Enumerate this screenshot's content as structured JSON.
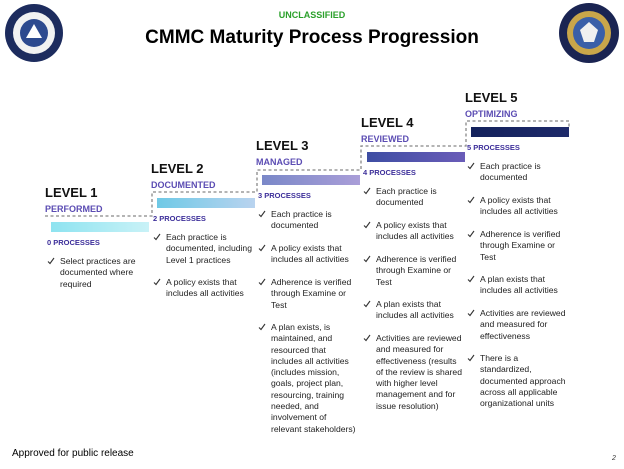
{
  "header": {
    "marking": "UNCLASSIFIED",
    "title": "CMMC Maturity Process Progression"
  },
  "levels": [
    {
      "level": "LEVEL 1",
      "name": "PERFORMED",
      "processes": "0 PROCESSES",
      "items": [
        "Select practices are documented where required"
      ]
    },
    {
      "level": "LEVEL 2",
      "name": "DOCUMENTED",
      "processes": "2 PROCESSES",
      "items": [
        "Each practice is documented, including Level 1 practices",
        "A policy exists that includes all activities"
      ]
    },
    {
      "level": "LEVEL 3",
      "name": "MANAGED",
      "processes": "3 PROCESSES",
      "items": [
        "Each practice is documented",
        "A policy exists that includes all activities",
        "Adherence is verified through Examine or Test",
        "A plan exists, is maintained, and resourced that includes all activities (includes mission, goals, project plan, resourcing, training needed, and involvement of relevant stakeholders)"
      ]
    },
    {
      "level": "LEVEL 4",
      "name": "REVIEWED",
      "processes": "4 PROCESSES",
      "items": [
        "Each practice is documented",
        "A policy exists that includes all activities",
        "Adherence is verified through Examine or Test",
        "A plan exists that includes all activities",
        "Activities are reviewed and measured for effectiveness (results of the review is shared with higher level management and for issue resolution)"
      ]
    },
    {
      "level": "LEVEL 5",
      "name": "OPTIMIZING",
      "processes": "5 PROCESSES",
      "items": [
        "Each practice is documented",
        "A policy exists that includes all activities",
        "Adherence is verified through Examine or Test",
        "A plan exists that includes all activities",
        "Activities are reviewed and measured for effectiveness",
        "There is a standardized, documented approach across all applicable organizational units"
      ]
    }
  ],
  "footer": {
    "release": "Approved for public release",
    "page": "2"
  }
}
